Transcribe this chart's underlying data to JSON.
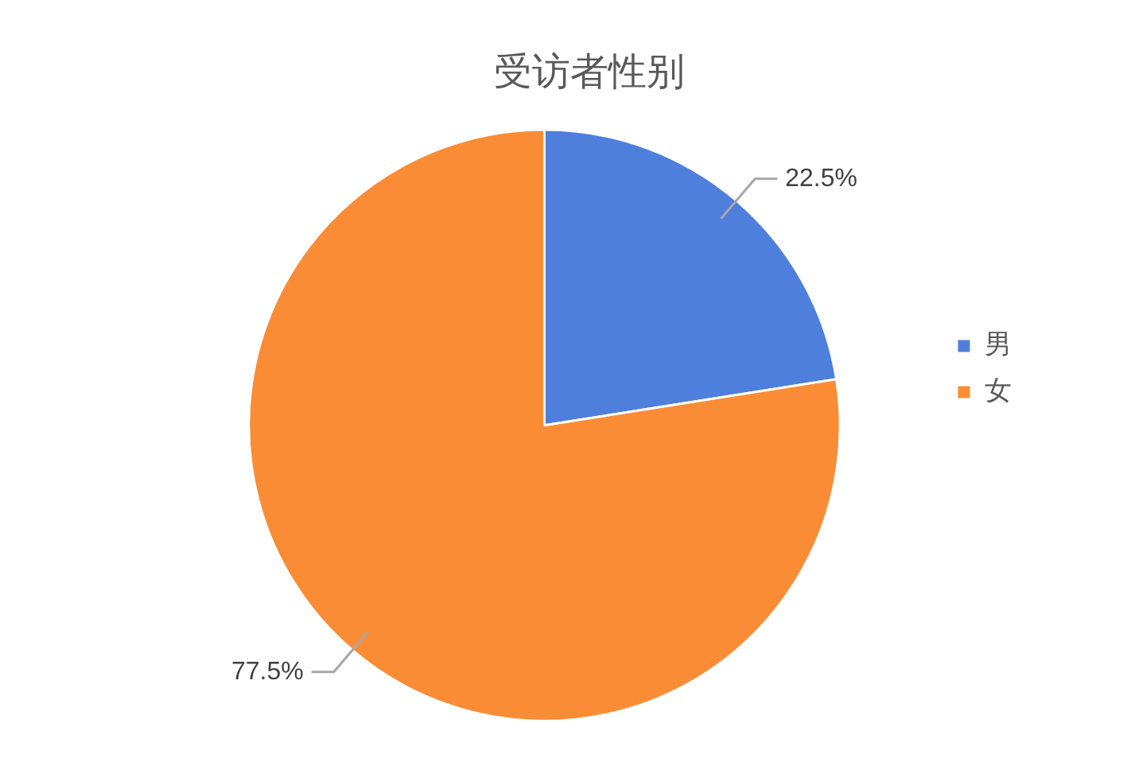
{
  "chart_data": {
    "type": "pie",
    "title": "受访者性别",
    "categories": [
      "男",
      "女"
    ],
    "values": [
      22.5,
      77.5
    ],
    "colors": [
      "#4e7fdc",
      "#fb8c36"
    ],
    "value_labels": [
      "22.5%",
      "77.5%"
    ],
    "legend": "right"
  }
}
